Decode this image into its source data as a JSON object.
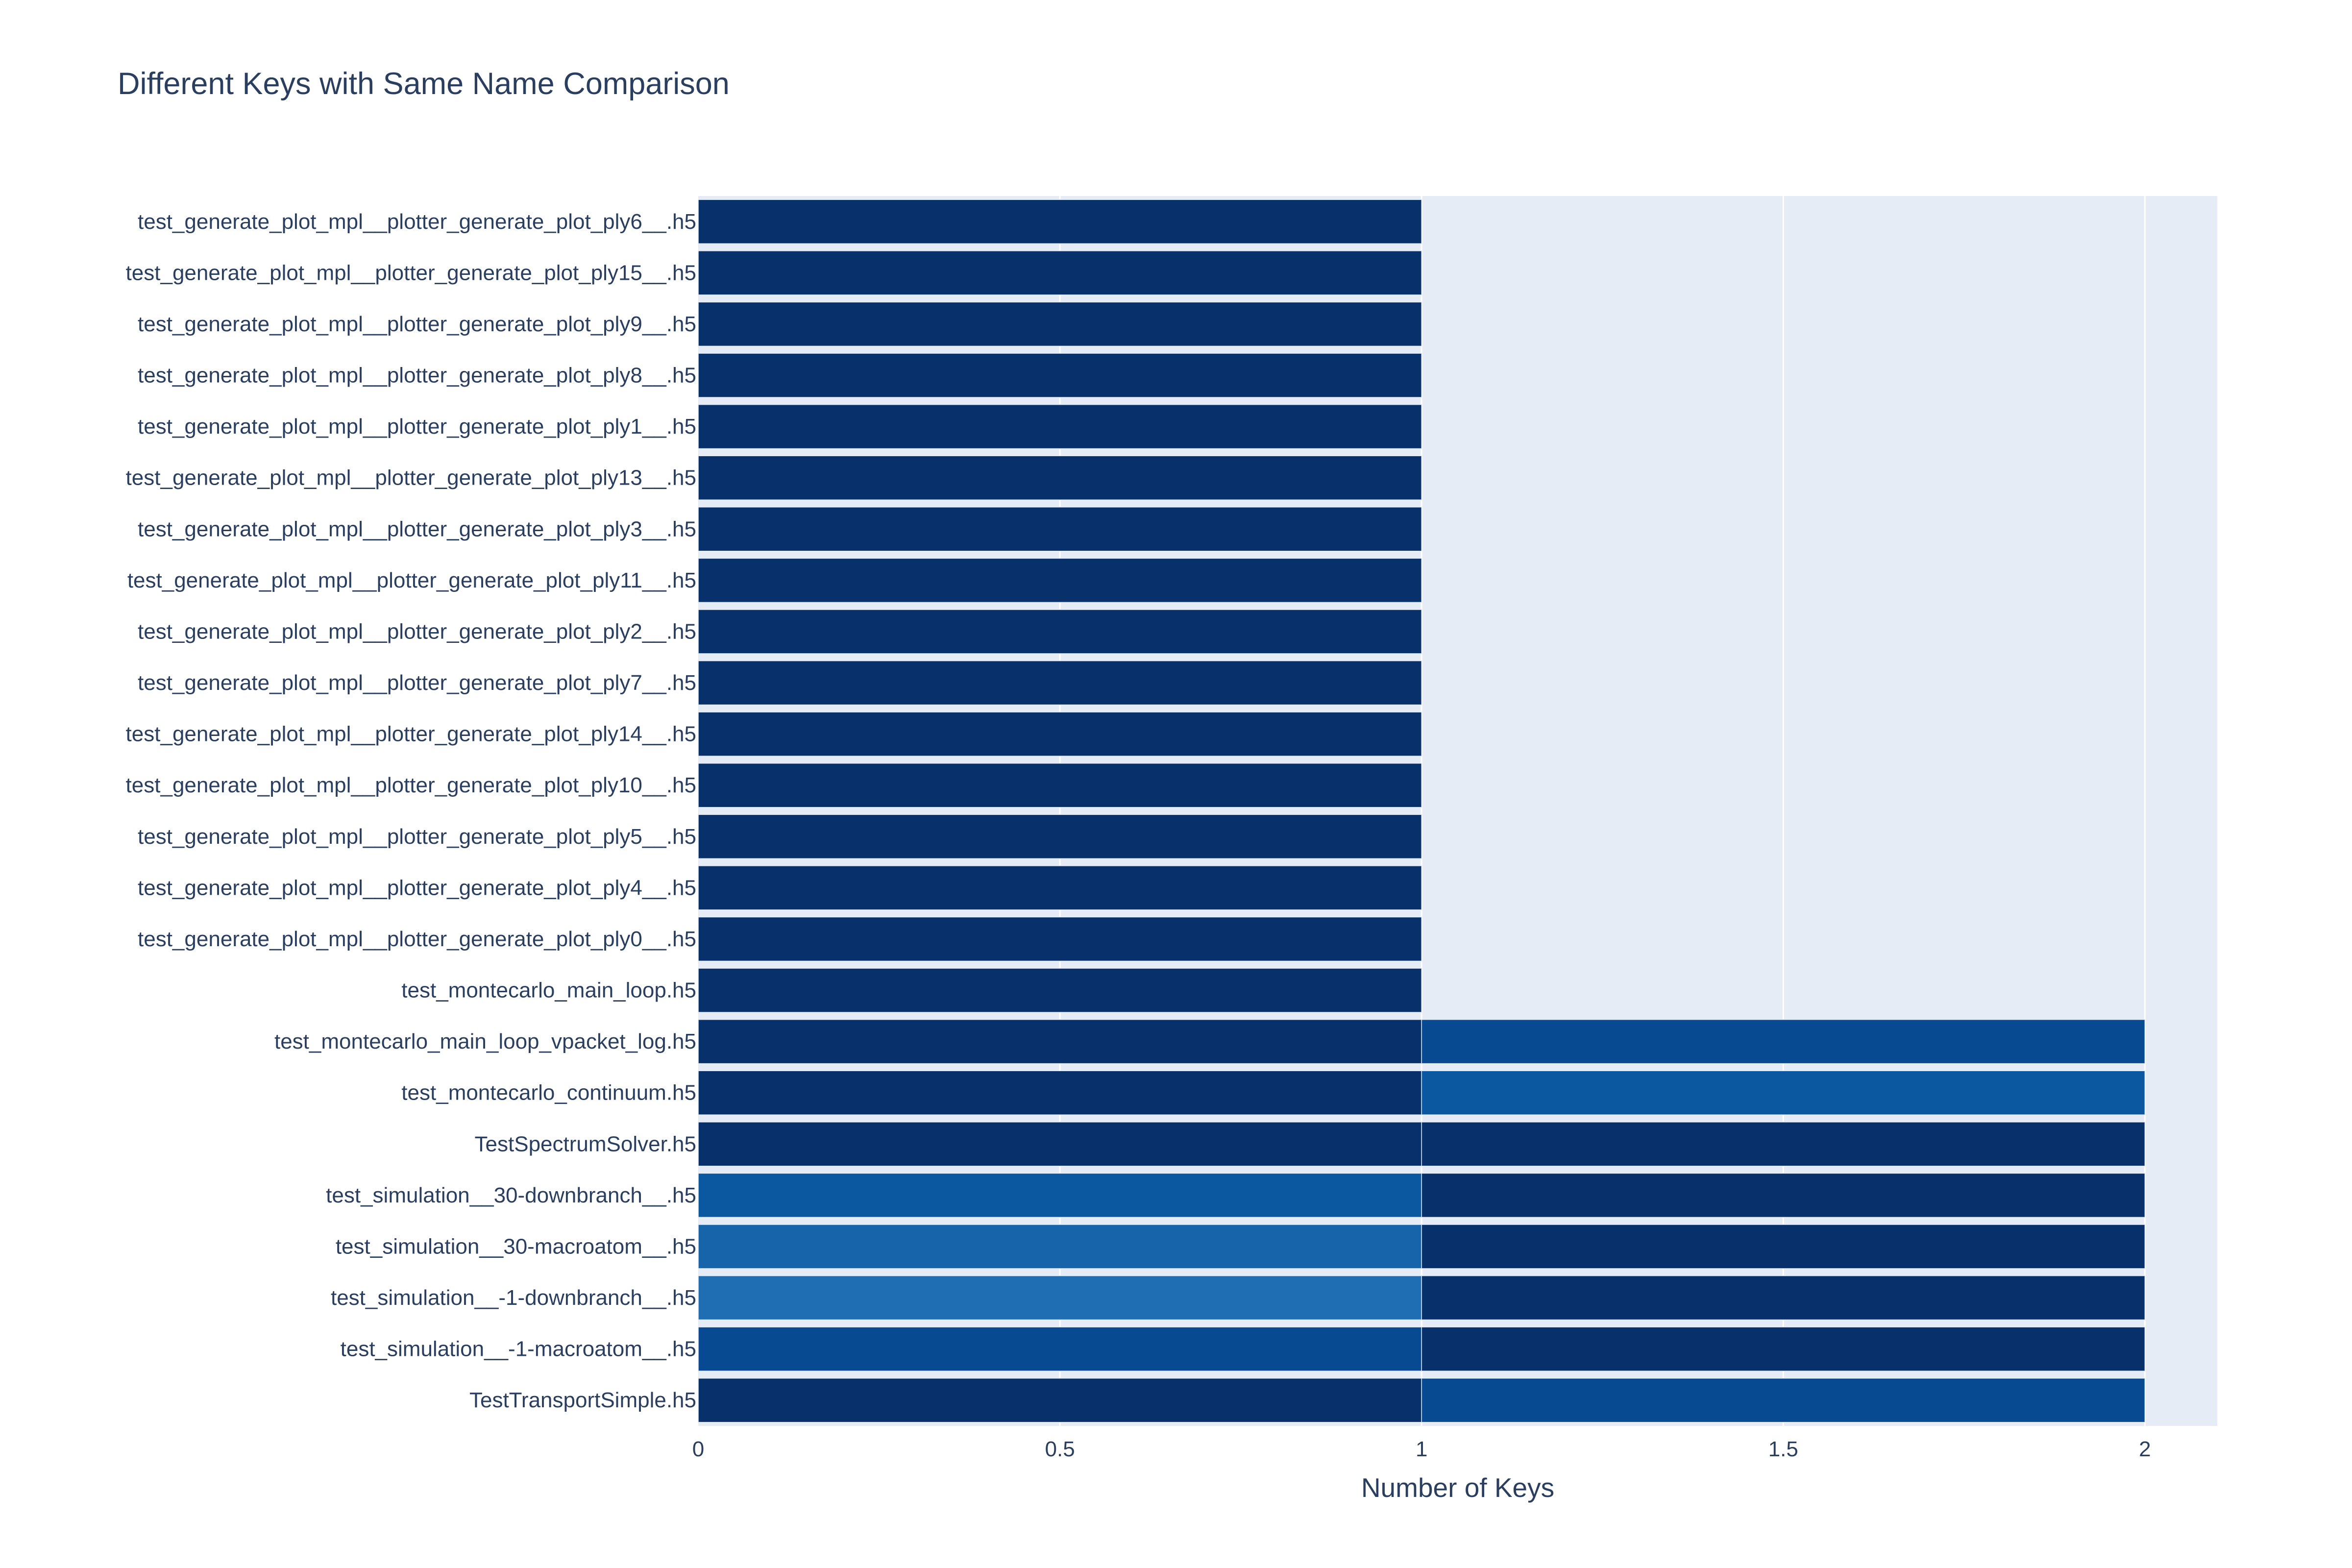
{
  "chart_data": {
    "type": "bar",
    "orientation": "horizontal",
    "barmode": "stack",
    "title": "Different Keys with Same Name Comparison",
    "xlabel": "Number of Keys",
    "ylabel": "",
    "xlim": [
      0,
      2.1
    ],
    "x_ticks": [
      0,
      0.5,
      1,
      1.5,
      2
    ],
    "x_tick_labels": [
      "0",
      "0.5",
      "1",
      "1.5",
      "2"
    ],
    "grid": true,
    "legend": false,
    "colors": {
      "plot_background": "#e5ecf6",
      "paper_background": "#ffffff",
      "text": "#2a3f5f",
      "bar_dark": "#08306b",
      "bar_blue_1": "#084a91",
      "bar_blue_2": "#0b58a1",
      "bar_blue_3": "#1764ab",
      "bar_blue_4": "#1f6eb3"
    },
    "categories": [
      "TestTransportSimple.h5",
      "test_simulation__-1-macroatom__.h5",
      "test_simulation__-1-downbranch__.h5",
      "test_simulation__30-macroatom__.h5",
      "test_simulation__30-downbranch__.h5",
      "TestSpectrumSolver.h5",
      "test_montecarlo_continuum.h5",
      "test_montecarlo_main_loop_vpacket_log.h5",
      "test_montecarlo_main_loop.h5",
      "test_generate_plot_mpl__plotter_generate_plot_ply0__.h5",
      "test_generate_plot_mpl__plotter_generate_plot_ply4__.h5",
      "test_generate_plot_mpl__plotter_generate_plot_ply5__.h5",
      "test_generate_plot_mpl__plotter_generate_plot_ply10__.h5",
      "test_generate_plot_mpl__plotter_generate_plot_ply14__.h5",
      "test_generate_plot_mpl__plotter_generate_plot_ply7__.h5",
      "test_generate_plot_mpl__plotter_generate_plot_ply2__.h5",
      "test_generate_plot_mpl__plotter_generate_plot_ply11__.h5",
      "test_generate_plot_mpl__plotter_generate_plot_ply3__.h5",
      "test_generate_plot_mpl__plotter_generate_plot_ply13__.h5",
      "test_generate_plot_mpl__plotter_generate_plot_ply1__.h5",
      "test_generate_plot_mpl__plotter_generate_plot_ply8__.h5",
      "test_generate_plot_mpl__plotter_generate_plot_ply9__.h5",
      "test_generate_plot_mpl__plotter_generate_plot_ply15__.h5",
      "test_generate_plot_mpl__plotter_generate_plot_ply6__.h5"
    ],
    "series": [
      {
        "values": [
          1,
          1,
          1,
          1,
          1,
          1,
          1,
          1,
          1,
          1,
          1,
          1,
          1,
          1,
          1,
          1,
          1,
          1,
          1,
          1,
          1,
          1,
          1,
          1
        ],
        "colors": [
          "#08306b",
          "#084a91",
          "#1f6eb3",
          "#1764ab",
          "#0b58a1",
          "#08306b",
          "#08306b",
          "#08306b",
          "#08306b",
          "#08306b",
          "#08306b",
          "#08306b",
          "#08306b",
          "#08306b",
          "#08306b",
          "#08306b",
          "#08306b",
          "#08306b",
          "#08306b",
          "#08306b",
          "#08306b",
          "#08306b",
          "#08306b",
          "#08306b"
        ]
      },
      {
        "values": [
          1,
          1,
          1,
          1,
          1,
          1,
          1,
          1,
          0,
          0,
          0,
          0,
          0,
          0,
          0,
          0,
          0,
          0,
          0,
          0,
          0,
          0,
          0,
          0
        ],
        "colors": [
          "#084a91",
          "#08306b",
          "#08306b",
          "#08306b",
          "#08306b",
          "#08306b",
          "#0b58a1",
          "#084a91",
          "#08306b",
          "#08306b",
          "#08306b",
          "#08306b",
          "#08306b",
          "#08306b",
          "#08306b",
          "#08306b",
          "#08306b",
          "#08306b",
          "#08306b",
          "#08306b",
          "#08306b",
          "#08306b",
          "#08306b",
          "#08306b"
        ]
      }
    ]
  }
}
